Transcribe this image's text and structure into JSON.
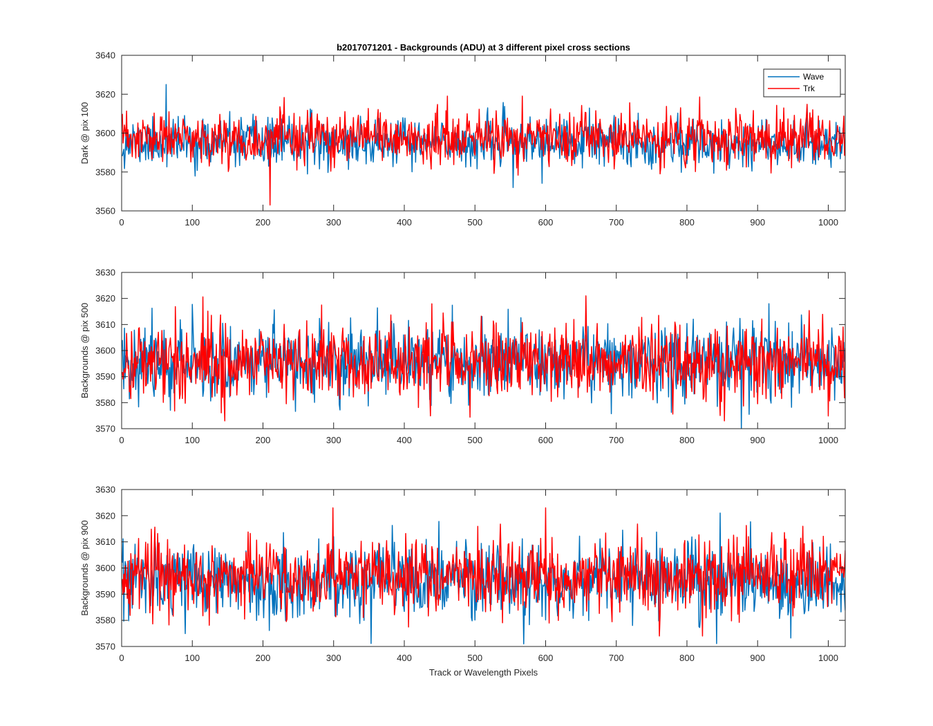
{
  "chart_data": {
    "type": "line",
    "title": "b2017071201 - Backgrounds (ADU) at 3 different pixel cross sections",
    "xlabel": "Track or Wavelength Pixels",
    "xlim": [
      0,
      1024
    ],
    "xticks": [
      0,
      100,
      200,
      300,
      400,
      500,
      600,
      700,
      800,
      900,
      1000
    ],
    "n_points": 1024,
    "legend": {
      "location": "top-right",
      "entries": [
        "Wave",
        "Trk"
      ]
    },
    "series_colors": {
      "Wave": "#0072BD",
      "Trk": "#FF0000"
    },
    "panels": [
      {
        "ylabel": "Dark @ pix 100",
        "ylim": [
          3560,
          3640
        ],
        "yticks": [
          3560,
          3580,
          3600,
          3620,
          3640
        ],
        "series": [
          {
            "name": "Wave",
            "mean": 3595,
            "std": 6.0,
            "min": 3572,
            "max": 3625,
            "seed": 11
          },
          {
            "name": "Trk",
            "mean": 3597,
            "std": 6.5,
            "min": 3563,
            "max": 3619,
            "seed": 23
          }
        ]
      },
      {
        "ylabel": "Backgrounds @ pix 500",
        "ylim": [
          3570,
          3630
        ],
        "yticks": [
          3570,
          3580,
          3590,
          3600,
          3610,
          3620,
          3630
        ],
        "series": [
          {
            "name": "Wave",
            "mean": 3596,
            "std": 7.0,
            "min": 3570,
            "max": 3618,
            "seed": 37
          },
          {
            "name": "Trk",
            "mean": 3596,
            "std": 7.5,
            "min": 3573,
            "max": 3621,
            "seed": 41
          }
        ]
      },
      {
        "ylabel": "Backgrounds @ pix 900",
        "ylim": [
          3570,
          3630
        ],
        "yticks": [
          3570,
          3580,
          3590,
          3600,
          3610,
          3620,
          3630
        ],
        "series": [
          {
            "name": "Wave",
            "mean": 3595,
            "std": 7.0,
            "min": 3571,
            "max": 3621,
            "seed": 53
          },
          {
            "name": "Trk",
            "mean": 3597,
            "std": 7.0,
            "min": 3574,
            "max": 3623,
            "seed": 67
          }
        ]
      }
    ]
  }
}
